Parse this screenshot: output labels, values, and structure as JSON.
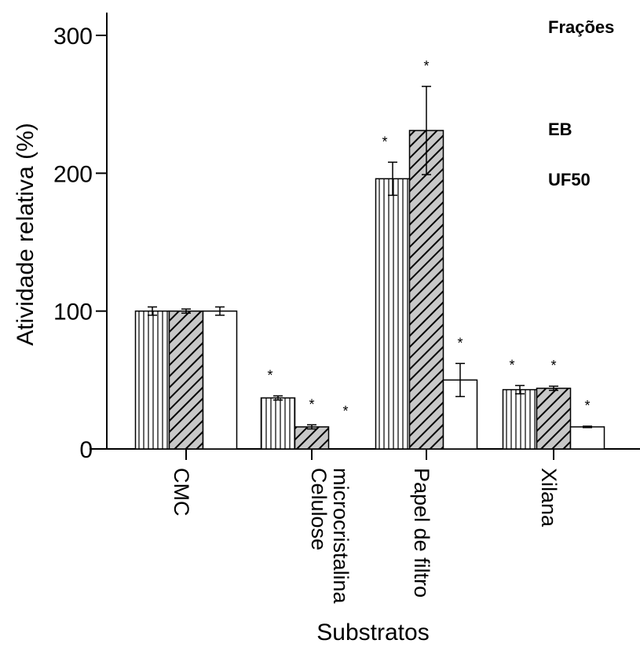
{
  "chart_data": {
    "type": "bar",
    "xlabel": "Substratos",
    "ylabel": "Atividade relativa (%)",
    "ylim": [
      0,
      300
    ],
    "yticks": [
      "0",
      "100",
      "200",
      "300"
    ],
    "categories": [
      "CMC",
      "Celulose\nmicrocristalina",
      "Papel de filtro",
      "Xilana"
    ],
    "legend_title": "Frações",
    "legend_position": "top-right",
    "series": [
      {
        "name": "EB",
        "pattern": "vertical-lines",
        "values": [
          100,
          37,
          196,
          43
        ],
        "errors": [
          3,
          1.5,
          12,
          3
        ],
        "significant": [
          false,
          true,
          true,
          true
        ]
      },
      {
        "name": "UF50",
        "pattern": "diagonal-hatch",
        "values": [
          100,
          16,
          231,
          44
        ],
        "errors": [
          1.5,
          1.5,
          32,
          1.5
        ],
        "significant": [
          false,
          true,
          true,
          true
        ]
      },
      {
        "name": "",
        "pattern": "white",
        "values": [
          100,
          0,
          50,
          16
        ],
        "errors": [
          3,
          0,
          12,
          0.5
        ],
        "significant": [
          false,
          true,
          true,
          true
        ]
      }
    ],
    "significance_marker": "*",
    "colors": {
      "stripe": "#000000",
      "hatch_fill": "#c8c8c8",
      "white_fill": "#ffffff"
    }
  }
}
